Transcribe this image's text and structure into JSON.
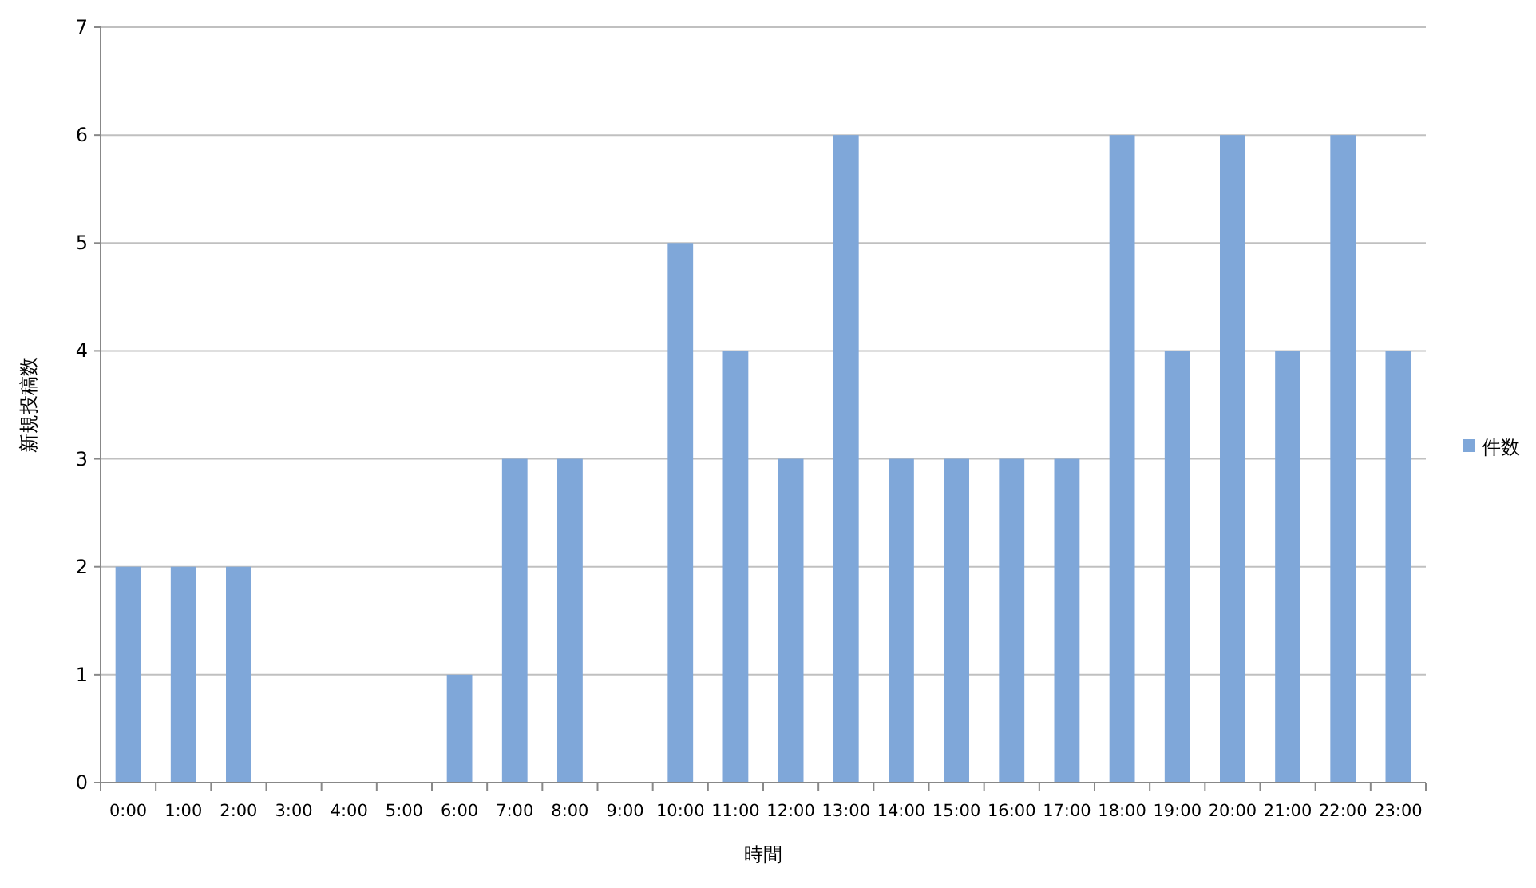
{
  "chart_data": {
    "type": "bar",
    "xlabel": "時間",
    "ylabel": "新規投稿数",
    "categories": [
      "0:00",
      "1:00",
      "2:00",
      "3:00",
      "4:00",
      "5:00",
      "6:00",
      "7:00",
      "8:00",
      "9:00",
      "10:00",
      "11:00",
      "12:00",
      "13:00",
      "14:00",
      "15:00",
      "16:00",
      "17:00",
      "18:00",
      "19:00",
      "20:00",
      "21:00",
      "22:00",
      "23:00"
    ],
    "series": [
      {
        "name": "件数",
        "color": "#7fa7d9",
        "values": [
          2,
          2,
          2,
          0,
          0,
          0,
          1,
          3,
          3,
          0,
          5,
          4,
          3,
          6,
          3,
          3,
          3,
          3,
          6,
          4,
          6,
          4,
          6,
          4
        ]
      }
    ],
    "ylim": [
      0,
      7
    ],
    "yticks": [
      0,
      1,
      2,
      3,
      4,
      5,
      6,
      7
    ],
    "grid": "y",
    "legend": "right"
  }
}
